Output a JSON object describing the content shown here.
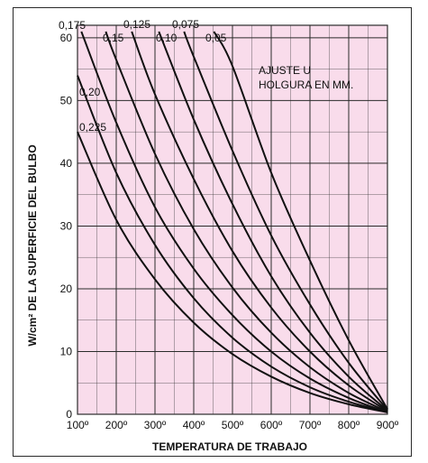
{
  "chart_data": {
    "type": "line",
    "title": "",
    "xlabel": "TEMPERATURA DE TRABAJO",
    "ylabel": "W/cm² DE LA SUPERFICIE DEL BULBO",
    "xlim": [
      100,
      900
    ],
    "ylim": [
      0,
      62
    ],
    "x_ticks": [
      "100º",
      "200º",
      "300º",
      "400º",
      "500º",
      "600º",
      "700º",
      "800º",
      "900º"
    ],
    "y_ticks": [
      "0",
      "10",
      "20",
      "30",
      "40",
      "50",
      "60"
    ],
    "y_tick_values": [
      0,
      10,
      20,
      30,
      40,
      50,
      60
    ],
    "x_tick_values": [
      100,
      200,
      300,
      400,
      500,
      600,
      700,
      800,
      900
    ],
    "grid": true,
    "background_color": "#f9dceb",
    "grid_color": "#2b2b2b",
    "line_color": "#111111",
    "annotation": [
      "AJUSTE U",
      "HOLGURA EN MM."
    ],
    "series": [
      {
        "name": "0,225",
        "x": [
          100,
          200,
          300,
          400,
          500,
          600,
          700,
          800,
          900
        ],
        "y": [
          45,
          31,
          21.5,
          14.6,
          9.6,
          6.0,
          3.4,
          1.6,
          0.3
        ]
      },
      {
        "name": "0,20",
        "x": [
          100,
          200,
          300,
          400,
          500,
          600,
          700,
          800,
          900
        ],
        "y": [
          54,
          38.5,
          27,
          18.5,
          12.2,
          7.6,
          4.3,
          2.0,
          0.3
        ]
      },
      {
        "name": "0,175",
        "x": [
          110,
          200,
          300,
          400,
          500,
          600,
          700,
          800,
          900
        ],
        "y": [
          61,
          46.5,
          33,
          23.2,
          15.8,
          10.0,
          5.7,
          2.6,
          0.3
        ]
      },
      {
        "name": "0,15",
        "x": [
          173,
          200,
          300,
          400,
          500,
          600,
          700,
          800,
          900
        ],
        "y": [
          61,
          56.5,
          41.5,
          29.5,
          20.2,
          13.0,
          7.5,
          3.4,
          0.4
        ]
      },
      {
        "name": "0,125",
        "x": [
          240,
          300,
          400,
          500,
          600,
          700,
          800,
          900
        ],
        "y": [
          61,
          51,
          37.5,
          26.0,
          17.0,
          10.0,
          4.6,
          0.5
        ]
      },
      {
        "name": "0,10",
        "x": [
          310,
          400,
          500,
          600,
          700,
          800,
          900
        ],
        "y": [
          61,
          47,
          33.5,
          22.0,
          13.0,
          6.0,
          0.6
        ]
      },
      {
        "name": "0,075",
        "x": [
          375,
          400,
          500,
          600,
          700,
          800,
          900
        ],
        "y": [
          61,
          57,
          42,
          28.5,
          17.5,
          8.2,
          0.7
        ]
      },
      {
        "name": "0,05",
        "x": [
          452,
          500,
          600,
          700,
          800,
          900
        ],
        "y": [
          61,
          55.5,
          38.5,
          24.5,
          11.8,
          0.8
        ]
      }
    ]
  }
}
